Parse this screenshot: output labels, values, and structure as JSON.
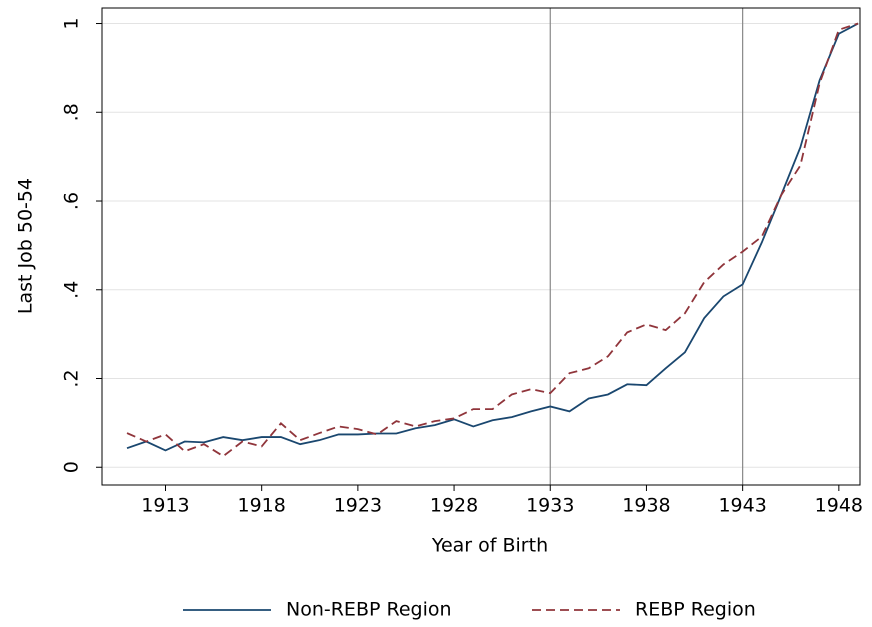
{
  "chart_data": {
    "type": "line",
    "xlabel": "Year of Birth",
    "ylabel": "Last Job 50-54",
    "x": [
      1911,
      1912,
      1913,
      1914,
      1915,
      1916,
      1917,
      1918,
      1919,
      1920,
      1921,
      1922,
      1923,
      1924,
      1925,
      1926,
      1927,
      1928,
      1929,
      1930,
      1931,
      1932,
      1933,
      1934,
      1935,
      1936,
      1937,
      1938,
      1939,
      1940,
      1941,
      1942,
      1943,
      1944,
      1945,
      1946,
      1947,
      1948,
      1949
    ],
    "series": [
      {
        "name": "Non-REBP Region",
        "color": "#1a476f",
        "dash": false,
        "values": [
          0.043,
          0.058,
          0.038,
          0.058,
          0.056,
          0.068,
          0.061,
          0.068,
          0.068,
          0.052,
          0.061,
          0.074,
          0.074,
          0.076,
          0.076,
          0.088,
          0.095,
          0.108,
          0.092,
          0.106,
          0.113,
          0.126,
          0.137,
          0.126,
          0.155,
          0.164,
          0.187,
          0.185,
          0.223,
          0.259,
          0.336,
          0.385,
          0.412,
          0.507,
          0.613,
          0.721,
          0.872,
          0.977,
          1.0
        ]
      },
      {
        "name": "REBP Region",
        "color": "#90353b",
        "dash": true,
        "values": [
          0.077,
          0.058,
          0.074,
          0.036,
          0.052,
          0.025,
          0.058,
          0.047,
          0.099,
          0.061,
          0.077,
          0.092,
          0.086,
          0.074,
          0.104,
          0.092,
          0.104,
          0.11,
          0.131,
          0.131,
          0.164,
          0.176,
          0.167,
          0.212,
          0.223,
          0.25,
          0.304,
          0.322,
          0.309,
          0.347,
          0.417,
          0.457,
          0.486,
          0.52,
          0.613,
          0.68,
          0.865,
          0.986,
          1.0
        ]
      }
    ],
    "xlim": [
      1909.7,
      1949.1
    ],
    "xticks": [
      1913,
      1918,
      1923,
      1928,
      1933,
      1938,
      1943,
      1948
    ],
    "ylim": [
      -0.04,
      1.035
    ],
    "yticks": [
      0,
      {
        "value": 0.2,
        "label": ".2"
      },
      {
        "value": 0.4,
        "label": ".4"
      },
      {
        "value": 0.6,
        "label": ".6"
      },
      {
        "value": 0.8,
        "label": ".8"
      },
      1
    ],
    "xlines": [
      1933,
      1943
    ],
    "grid": true,
    "legend": "bottom"
  }
}
